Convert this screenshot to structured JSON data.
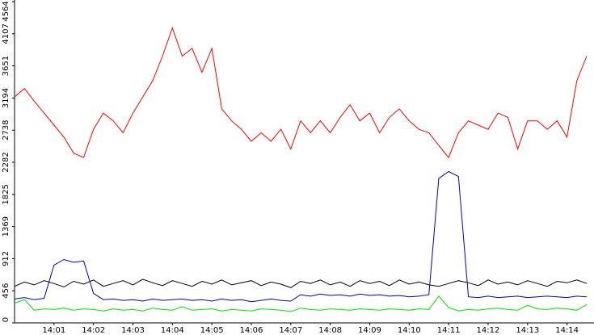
{
  "chart_data": {
    "type": "line",
    "x": [
      "14:00:00",
      "14:00:15",
      "14:00:30",
      "14:00:45",
      "14:01:00",
      "14:01:15",
      "14:01:30",
      "14:01:45",
      "14:02:00",
      "14:02:15",
      "14:02:30",
      "14:02:45",
      "14:03:00",
      "14:03:15",
      "14:03:30",
      "14:03:45",
      "14:04:00",
      "14:04:15",
      "14:04:30",
      "14:04:45",
      "14:05:00",
      "14:05:15",
      "14:05:30",
      "14:05:45",
      "14:06:00",
      "14:06:15",
      "14:06:30",
      "14:06:45",
      "14:07:00",
      "14:07:15",
      "14:07:30",
      "14:07:45",
      "14:08:00",
      "14:08:15",
      "14:08:30",
      "14:08:45",
      "14:09:00",
      "14:09:15",
      "14:09:30",
      "14:09:45",
      "14:10:00",
      "14:10:15",
      "14:10:30",
      "14:10:45",
      "14:11:00",
      "14:11:15",
      "14:11:30",
      "14:11:45",
      "14:12:00",
      "14:12:15",
      "14:12:30",
      "14:12:45",
      "14:13:00",
      "14:13:15",
      "14:13:30",
      "14:13:45",
      "14:14:00",
      "14:14:15",
      "14:14:30"
    ],
    "xlim": [
      "14:00:00",
      "14:14:41"
    ],
    "xticks": [
      "14:01",
      "14:02",
      "14:03",
      "14:04",
      "14:05",
      "14:06",
      "14:07",
      "14:08",
      "14:09",
      "14:10",
      "14:11",
      "14:12",
      "14:13",
      "14:14"
    ],
    "ylim": [
      0,
      4564
    ],
    "yticks": [
      0,
      456,
      912,
      1369,
      1825,
      2282,
      2738,
      3194,
      3651,
      4107,
      4564
    ],
    "series": [
      {
        "color": "#ff0000",
        "values": [
          3210,
          3330,
          3150,
          2980,
          2810,
          2640,
          2410,
          2350,
          2750,
          2980,
          2870,
          2700,
          2980,
          3210,
          3440,
          3790,
          4190,
          3790,
          3900,
          3560,
          3900,
          3040,
          2870,
          2750,
          2580,
          2700,
          2580,
          2750,
          2470,
          2870,
          2700,
          2870,
          2700,
          2920,
          3100,
          2870,
          2980,
          2700,
          2920,
          3040,
          2870,
          2750,
          2700,
          2520,
          2350,
          2700,
          2870,
          2810,
          2750,
          2980,
          2920,
          2470,
          2870,
          2870,
          2750,
          2870,
          2640,
          3440,
          3790
        ]
      },
      {
        "color": "#000000",
        "values": [
          520,
          580,
          540,
          600,
          560,
          510,
          590,
          550,
          610,
          520,
          560,
          600,
          540,
          620,
          570,
          530,
          600,
          560,
          520,
          590,
          550,
          610,
          540,
          570,
          600,
          530,
          580,
          550,
          500,
          590,
          560,
          610,
          540,
          580,
          520,
          600,
          560,
          590,
          530,
          610,
          550,
          580,
          540,
          520,
          560,
          600,
          570,
          530,
          610,
          550,
          580,
          540,
          600,
          560,
          520,
          590,
          570,
          610,
          560
        ]
      },
      {
        "color": "#0000c0",
        "values": [
          340,
          360,
          330,
          350,
          820,
          900,
          860,
          880,
          420,
          330,
          340,
          320,
          330,
          310,
          340,
          320,
          330,
          340,
          320,
          330,
          310,
          340,
          320,
          330,
          300,
          320,
          340,
          320,
          310,
          400,
          380,
          410,
          390,
          400,
          380,
          410,
          390,
          400,
          380,
          390,
          370,
          380,
          400,
          2050,
          2150,
          2080,
          370,
          360,
          380,
          360,
          370,
          380,
          360,
          370,
          380,
          370,
          360,
          380,
          370
        ]
      },
      {
        "color": "#00e000",
        "values": [
          280,
          330,
          180,
          200,
          190,
          210,
          180,
          200,
          190,
          170,
          200,
          180,
          190,
          170,
          210,
          190,
          180,
          230,
          180,
          190,
          200,
          170,
          190,
          180,
          170,
          200,
          190,
          180,
          160,
          210,
          190,
          180,
          200,
          190,
          180,
          200,
          190,
          180,
          200,
          190,
          180,
          200,
          190,
          380,
          220,
          170,
          190,
          180,
          200,
          210,
          190,
          180,
          250,
          200,
          190,
          210,
          200,
          180,
          260
        ]
      }
    ]
  }
}
